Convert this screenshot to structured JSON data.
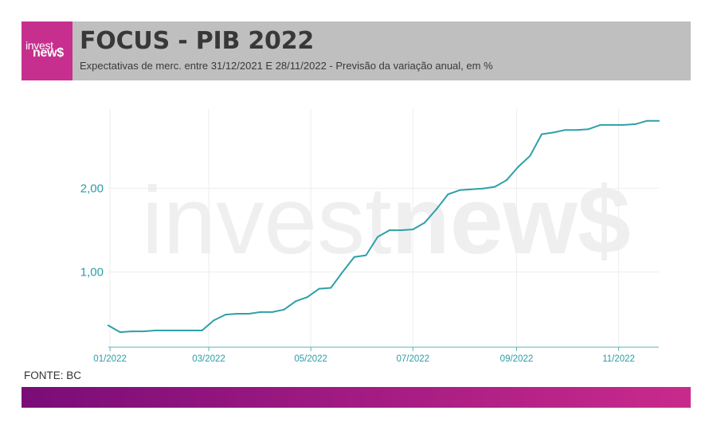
{
  "logo": {
    "line1": "invest",
    "line2": "new$"
  },
  "watermark": {
    "part1": "invest",
    "part2": "new$"
  },
  "footer": {
    "source": "FONTE: BC"
  },
  "colors": {
    "line": "#2ea0a9",
    "ticks": "#2a9da6",
    "axis": "#5fb0b6",
    "grid": "#eeeeee",
    "header_bg": "#bfbfbf",
    "logo_bg": "#c72f8e",
    "gradient_start": "#7a0c78",
    "gradient_end": "#c92a8c",
    "watermark": "#efefef",
    "title_text": "#383838",
    "subtitle_text": "#3a3a3a"
  },
  "chart_data": {
    "type": "line",
    "title": "FOCUS - PIB 2022",
    "subtitle": "Expectativas de merc. entre 31/12/2021 E 28/11/2022 - Previsão da variação anual, em %",
    "x": [
      "2021-12-31",
      "2022-01-07",
      "2022-01-14",
      "2022-01-21",
      "2022-01-28",
      "2022-02-04",
      "2022-02-11",
      "2022-02-18",
      "2022-02-25",
      "2022-03-04",
      "2022-03-11",
      "2022-03-18",
      "2022-03-25",
      "2022-04-01",
      "2022-04-08",
      "2022-04-15",
      "2022-04-22",
      "2022-04-29",
      "2022-05-06",
      "2022-05-13",
      "2022-05-20",
      "2022-05-27",
      "2022-06-03",
      "2022-06-10",
      "2022-06-17",
      "2022-06-24",
      "2022-07-01",
      "2022-07-08",
      "2022-07-15",
      "2022-07-22",
      "2022-07-29",
      "2022-08-05",
      "2022-08-12",
      "2022-08-19",
      "2022-08-26",
      "2022-09-02",
      "2022-09-09",
      "2022-09-16",
      "2022-09-23",
      "2022-09-30",
      "2022-10-07",
      "2022-10-14",
      "2022-10-21",
      "2022-10-28",
      "2022-11-04",
      "2022-11-11",
      "2022-11-18",
      "2022-11-25"
    ],
    "series": [
      {
        "values": [
          0.36,
          0.28,
          0.29,
          0.29,
          0.3,
          0.3,
          0.3,
          0.3,
          0.3,
          0.42,
          0.49,
          0.5,
          0.5,
          0.52,
          0.52,
          0.55,
          0.65,
          0.7,
          0.8,
          0.81,
          1.0,
          1.18,
          1.2,
          1.42,
          1.5,
          1.5,
          1.51,
          1.59,
          1.75,
          1.93,
          1.98,
          1.99,
          2.0,
          2.02,
          2.1,
          2.26,
          2.39,
          2.65,
          2.67,
          2.7,
          2.7,
          2.71,
          2.76,
          2.76,
          2.76,
          2.77,
          2.81,
          2.81
        ]
      }
    ],
    "xlim": [
      "2021-12-31",
      "2022-11-25"
    ],
    "ylim": [
      0.1,
      2.95
    ],
    "x_ticks": [
      {
        "value": "2022-01-01",
        "label": "01/2022"
      },
      {
        "value": "2022-03-01",
        "label": "03/2022"
      },
      {
        "value": "2022-05-01",
        "label": "05/2022"
      },
      {
        "value": "2022-07-01",
        "label": "07/2022"
      },
      {
        "value": "2022-09-01",
        "label": "09/2022"
      },
      {
        "value": "2022-11-01",
        "label": "11/2022"
      }
    ],
    "y_ticks": [
      {
        "value": 1,
        "label": "1,00"
      },
      {
        "value": 2,
        "label": "2,00"
      }
    ],
    "grid": true
  }
}
